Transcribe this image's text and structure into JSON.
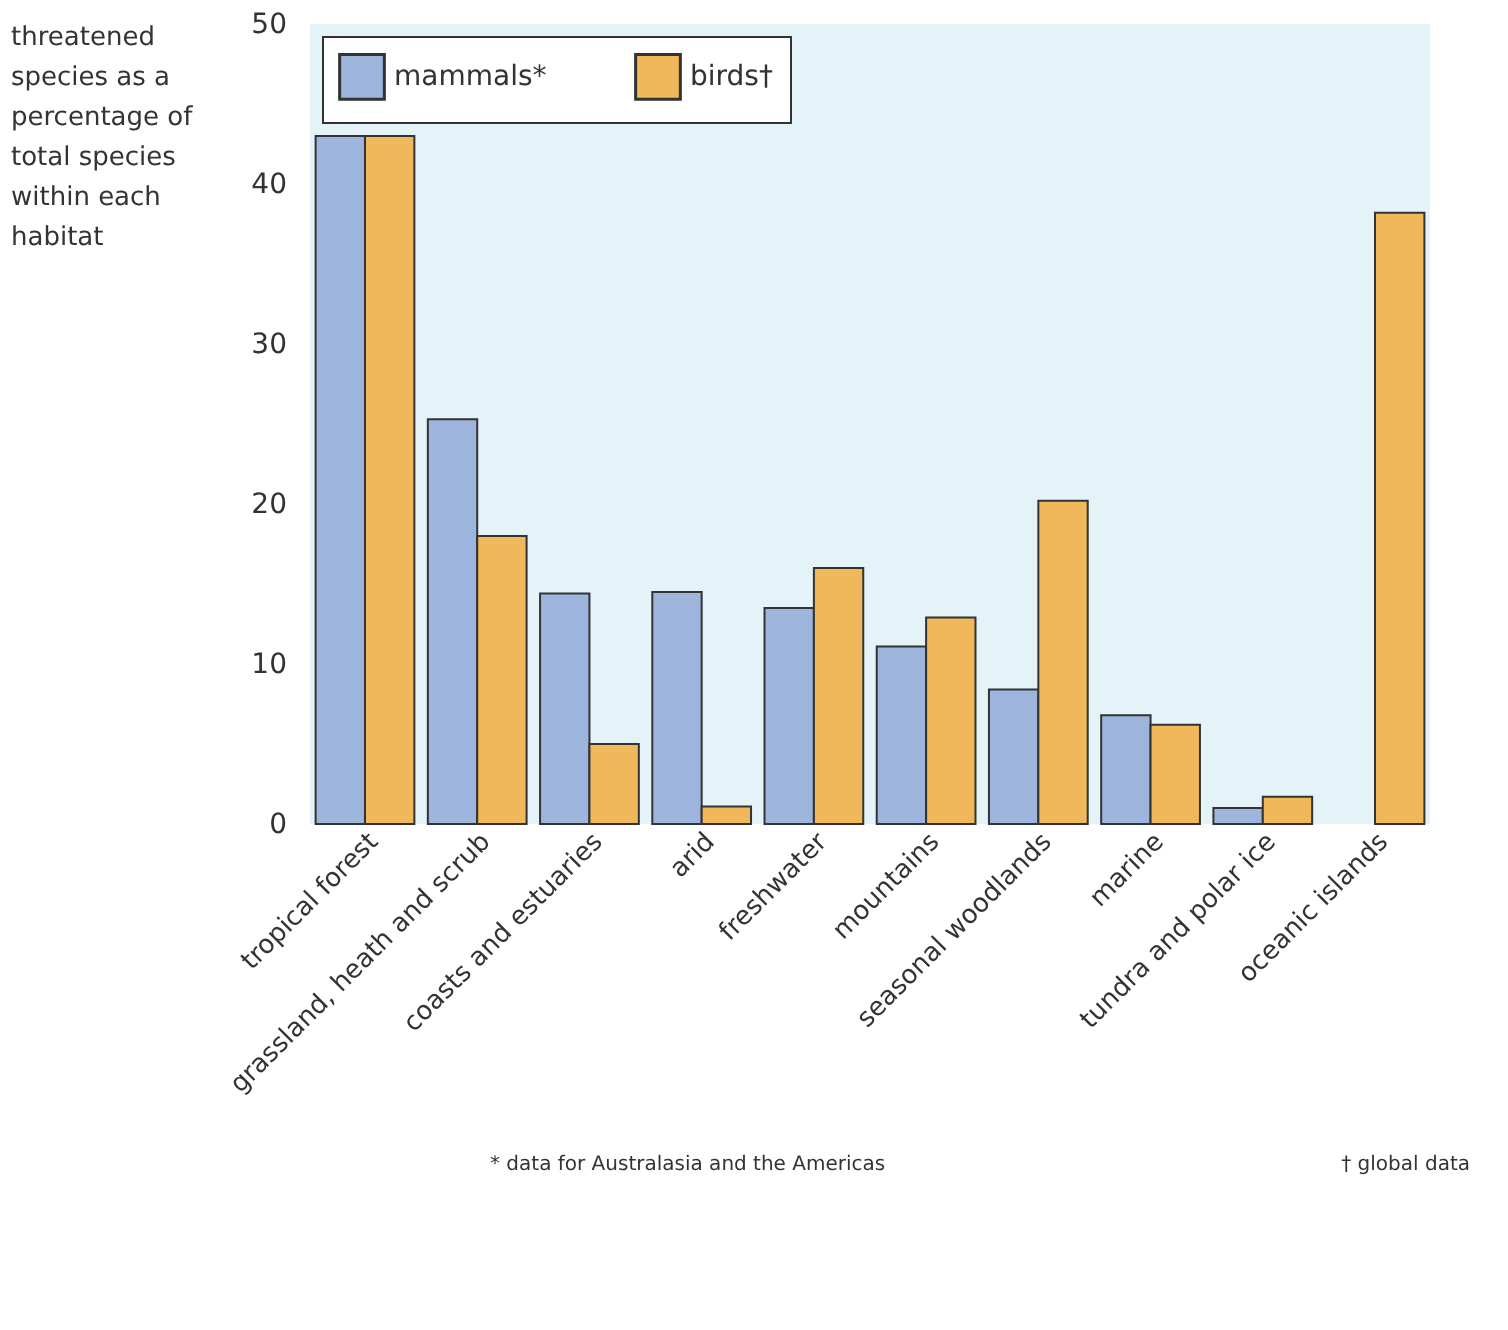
{
  "chart_data": {
    "type": "bar",
    "ylabel": "threatened species as a percentage of total species within each habitat",
    "categories": [
      "tropical forest",
      "grassland, heath and scrub",
      "coasts and estuaries",
      "arid",
      "freshwater",
      "mountains",
      "seasonal woodlands",
      "marine",
      "tundra and polar ice",
      "oceanic islands"
    ],
    "series": [
      {
        "name": "mammals*",
        "color": "#9db4dc",
        "values": [
          43,
          25.3,
          14.4,
          14.5,
          13.5,
          11.1,
          8.4,
          6.8,
          1.0,
          null
        ]
      },
      {
        "name": "birds†",
        "color": "#f0b85a",
        "values": [
          43,
          18,
          5.0,
          1.1,
          16,
          12.9,
          20.2,
          6.2,
          1.7,
          38.2
        ]
      }
    ],
    "ylim": [
      0,
      50
    ],
    "yticks": [
      0,
      10,
      20,
      30,
      40,
      50
    ],
    "grid": false,
    "legend": "top left",
    "annotations": [
      "* data for Australasia and the Americas",
      "† global data"
    ]
  }
}
